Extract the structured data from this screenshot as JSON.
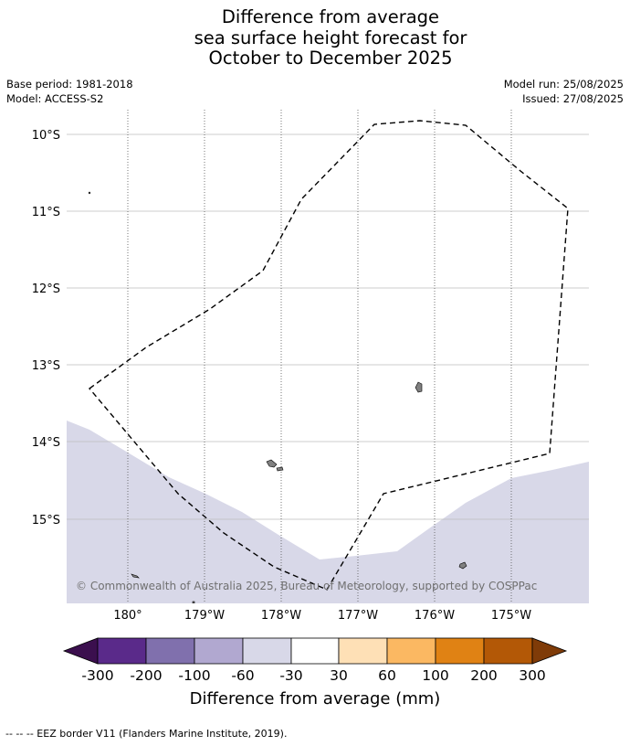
{
  "title": {
    "line1": "Difference from average",
    "line2": "sea surface height forecast for",
    "line3": "October to December 2025"
  },
  "meta": {
    "base_period": "Base period: 1981-2018",
    "model": "Model: ACCESS-S2",
    "model_run": "Model run: 25/08/2025",
    "issued": "Issued: 27/08/2025"
  },
  "map": {
    "lat_labels": [
      "10°S",
      "11°S",
      "12°S",
      "13°S",
      "14°S",
      "15°S"
    ],
    "lon_labels": [
      "180°",
      "179°W",
      "178°W",
      "177°W",
      "176°W",
      "175°W"
    ],
    "copyright": "© Commonwealth of Australia 2025, Bureau of Meteorology, supported by COSPPac",
    "anomaly_fill_color": "#d8d8e8",
    "land_color": "#808080"
  },
  "colorbar": {
    "ticks": [
      "-300",
      "-200",
      "-100",
      "-60",
      "-30",
      "30",
      "60",
      "100",
      "200",
      "300"
    ],
    "colors": [
      "#3b0f4e",
      "#5a2a8a",
      "#8070ad",
      "#b1a8d0",
      "#d8d8e8",
      "#ffffff",
      "#fee0b6",
      "#fbb862",
      "#e08214",
      "#b35806",
      "#7f3b08"
    ],
    "label": "Difference from average (mm)"
  },
  "footer": {
    "legend": "--  --  -- EEZ border V11 (Flanders Marine Institute, 2019)."
  }
}
